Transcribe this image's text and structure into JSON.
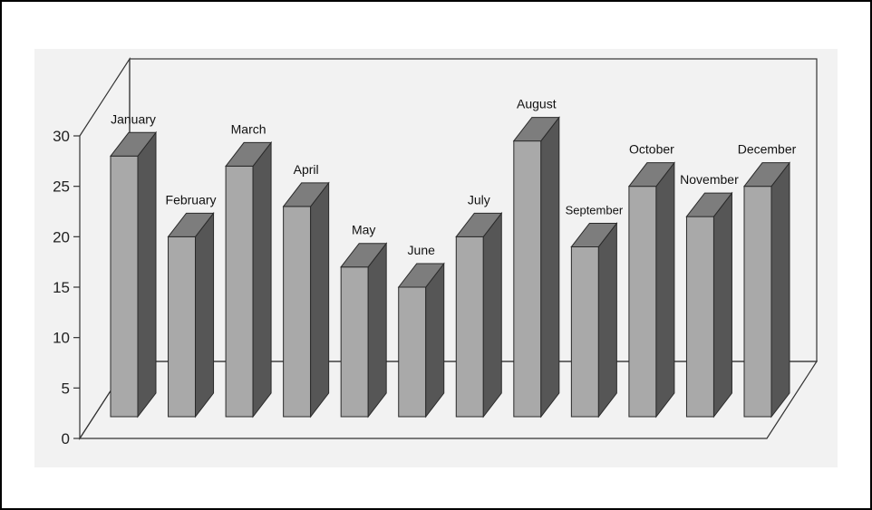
{
  "chart_data": {
    "type": "bar",
    "title": "",
    "xlabel": "",
    "ylabel": "",
    "categories": [
      "January",
      "February",
      "March",
      "April",
      "May",
      "June",
      "July",
      "August",
      "September",
      "October",
      "November",
      "December"
    ],
    "values": [
      28,
      20,
      27,
      23,
      17,
      15,
      20,
      29.5,
      19,
      25,
      22,
      25
    ],
    "ylim": [
      0,
      30
    ],
    "yticks": [
      "0",
      "5",
      "10",
      "15",
      "20",
      "25",
      "30"
    ],
    "grid": false,
    "legend": "none",
    "style": "3d-bars",
    "colors": {
      "bar_front": "#a9a9a9",
      "bar_top": "#7d7d7d",
      "bar_side": "#565656",
      "outline": "#2a2a2a",
      "panel": "#f2f2f2"
    }
  }
}
